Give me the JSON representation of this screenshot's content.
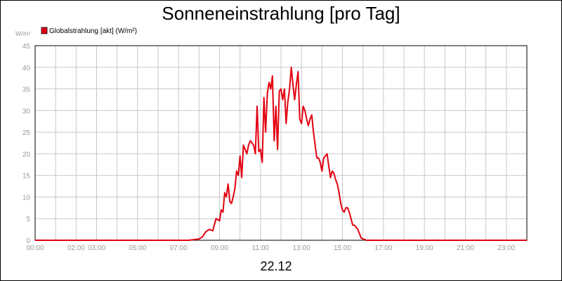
{
  "chart_data": {
    "type": "line",
    "title": "Sonneneinstrahlung [pro Tag]",
    "ylabel": "W/m²",
    "footer": "22.12",
    "grid": true,
    "legend_position": "top-left",
    "ylim": [
      0,
      45
    ],
    "xlim_hours": [
      0,
      24
    ],
    "y_ticks": [
      "0",
      "5",
      "10",
      "15",
      "20",
      "25",
      "30",
      "35",
      "40",
      "45"
    ],
    "x_ticks": [
      {
        "hour": 0,
        "label": "00:00"
      },
      {
        "hour": 2,
        "label": "02:00"
      },
      {
        "hour": 3,
        "label": "03:00"
      },
      {
        "hour": 5,
        "label": "05:00"
      },
      {
        "hour": 7,
        "label": "07:00"
      },
      {
        "hour": 9,
        "label": "09:00"
      },
      {
        "hour": 11,
        "label": "11:00"
      },
      {
        "hour": 13,
        "label": "13:00"
      },
      {
        "hour": 15,
        "label": "15:00"
      },
      {
        "hour": 17,
        "label": "17:00"
      },
      {
        "hour": 19,
        "label": "19:00"
      },
      {
        "hour": 21,
        "label": "21:00"
      },
      {
        "hour": 23,
        "label": "23:00"
      }
    ],
    "series": [
      {
        "name": "Globalstrahlung [akt] (W/m²)",
        "color": "#e3000f",
        "x": [
          "00:00",
          "07:30",
          "08:00",
          "08:10",
          "08:20",
          "08:30",
          "08:40",
          "08:50",
          "09:00",
          "09:05",
          "09:10",
          "09:15",
          "09:20",
          "09:25",
          "09:30",
          "09:35",
          "09:40",
          "09:45",
          "09:50",
          "09:55",
          "10:00",
          "10:05",
          "10:10",
          "10:15",
          "10:20",
          "10:25",
          "10:30",
          "10:35",
          "10:40",
          "10:45",
          "10:50",
          "10:55",
          "11:00",
          "11:05",
          "11:10",
          "11:15",
          "11:20",
          "11:25",
          "11:30",
          "11:35",
          "11:40",
          "11:45",
          "11:50",
          "11:55",
          "12:00",
          "12:05",
          "12:10",
          "12:15",
          "12:20",
          "12:25",
          "12:30",
          "12:35",
          "12:40",
          "12:45",
          "12:50",
          "12:55",
          "13:00",
          "13:05",
          "13:10",
          "13:15",
          "13:20",
          "13:25",
          "13:30",
          "13:35",
          "13:40",
          "13:45",
          "13:50",
          "13:55",
          "14:00",
          "14:05",
          "14:10",
          "14:15",
          "14:20",
          "14:25",
          "14:30",
          "14:35",
          "14:40",
          "14:45",
          "14:50",
          "14:55",
          "15:00",
          "15:05",
          "15:10",
          "15:15",
          "15:20",
          "15:25",
          "15:30",
          "15:35",
          "15:40",
          "15:45",
          "15:50",
          "15:55",
          "16:00",
          "16:05",
          "16:10",
          "16:15",
          "16:20",
          "16:25",
          "16:30",
          "16:35",
          "16:40",
          "17:00",
          "24:00"
        ],
        "y": [
          0,
          0,
          0.3,
          0.8,
          2,
          2.5,
          2.2,
          5,
          4.5,
          7,
          6.5,
          11,
          10,
          13,
          9,
          8.5,
          10,
          12,
          16,
          15,
          19.5,
          14.5,
          22,
          21,
          20,
          22,
          23,
          22.5,
          22,
          20,
          31,
          20.5,
          21,
          18,
          33,
          25,
          34,
          36.5,
          35,
          38,
          23,
          31,
          21,
          34.5,
          35,
          32.5,
          35,
          27,
          32,
          35,
          40,
          36,
          32.5,
          36,
          39,
          28,
          27,
          31,
          30,
          28,
          26.5,
          28,
          29,
          25,
          22,
          19,
          19,
          18,
          16,
          19,
          19.5,
          20,
          17,
          14.5,
          16,
          15.5,
          14,
          13,
          11,
          8.5,
          7,
          6.5,
          7.5,
          7.5,
          6.5,
          5,
          3.5,
          3.5,
          3,
          2.5,
          1.5,
          0.5,
          0.3,
          0.2,
          0,
          0,
          0,
          0,
          0,
          0,
          0,
          0,
          0
        ]
      }
    ]
  }
}
